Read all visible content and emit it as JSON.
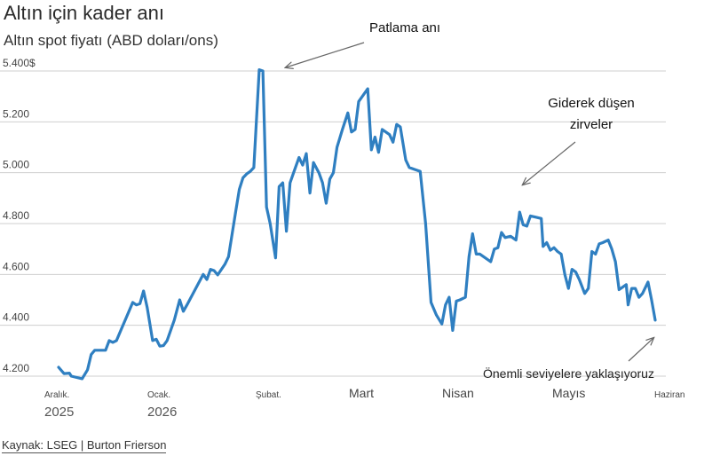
{
  "header": {
    "title": "Altın için kader anı",
    "subtitle": "Altın spot fiyatı (ABD doları/ons)"
  },
  "source": "Kaynak: LSEG | Burton Frierson",
  "chart_data": {
    "type": "line",
    "ylim": [
      4200,
      5400
    ],
    "y_ticks": [
      {
        "value": 5400,
        "label": "5.400$"
      },
      {
        "value": 5200,
        "label": "5.200"
      },
      {
        "value": 5000,
        "label": "5.000"
      },
      {
        "value": 4800,
        "label": "4.800"
      },
      {
        "value": 4600,
        "label": "4.600"
      },
      {
        "value": 4400,
        "label": "4.400"
      },
      {
        "value": 4200,
        "label": "4.200"
      }
    ],
    "x_ticks": [
      {
        "label": "Aralık.",
        "year": "2025",
        "size": "small"
      },
      {
        "label": "Ocak.",
        "year": "2026",
        "size": "small"
      },
      {
        "label": "Şubat.",
        "year": "",
        "size": "small"
      },
      {
        "label": "Mart",
        "year": "",
        "size": "large"
      },
      {
        "label": "Nisan",
        "year": "",
        "size": "large"
      },
      {
        "label": "Mayıs",
        "year": "",
        "size": "large"
      },
      {
        "label": "Haziran",
        "year": "",
        "size": "small"
      }
    ],
    "series": [
      {
        "color": "#2f7fc1",
        "points": [
          [
            0.0,
            4235
          ],
          [
            1.5,
            4210
          ],
          [
            3.0,
            4212
          ],
          [
            3.5,
            4200
          ],
          [
            6.5,
            4190
          ],
          [
            8.0,
            4225
          ],
          [
            9.0,
            4285
          ],
          [
            10.0,
            4302
          ],
          [
            13.0,
            4302
          ],
          [
            14.0,
            4340
          ],
          [
            15.0,
            4333
          ],
          [
            16.0,
            4340
          ],
          [
            17.5,
            4390
          ],
          [
            19.0,
            4440
          ],
          [
            20.5,
            4490
          ],
          [
            21.5,
            4480
          ],
          [
            22.5,
            4485
          ],
          [
            23.5,
            4535
          ],
          [
            24.5,
            4470
          ],
          [
            26.0,
            4340
          ],
          [
            27.0,
            4345
          ],
          [
            28.0,
            4318
          ],
          [
            29.0,
            4320
          ],
          [
            30.0,
            4340
          ],
          [
            32.0,
            4420
          ],
          [
            33.5,
            4500
          ],
          [
            34.5,
            4455
          ],
          [
            35.5,
            4480
          ],
          [
            37.0,
            4520
          ],
          [
            38.5,
            4560
          ],
          [
            40.0,
            4600
          ],
          [
            41.0,
            4580
          ],
          [
            42.0,
            4620
          ],
          [
            43.0,
            4615
          ],
          [
            44.0,
            4598
          ],
          [
            46.0,
            4640
          ],
          [
            47.0,
            4670
          ],
          [
            48.0,
            4760
          ],
          [
            49.0,
            4850
          ],
          [
            50.0,
            4935
          ],
          [
            51.0,
            4980
          ],
          [
            52.0,
            4995
          ],
          [
            53.0,
            5005
          ],
          [
            54.0,
            5020
          ],
          [
            55.5,
            5405
          ],
          [
            56.5,
            5400
          ],
          [
            57.5,
            4865
          ],
          [
            58.5,
            4800
          ],
          [
            60.0,
            4665
          ],
          [
            61.0,
            4945
          ],
          [
            62.0,
            4960
          ],
          [
            63.0,
            4770
          ],
          [
            64.0,
            4960
          ],
          [
            65.0,
            5000
          ],
          [
            66.5,
            5060
          ],
          [
            67.5,
            5030
          ],
          [
            68.5,
            5075
          ],
          [
            69.5,
            4920
          ],
          [
            70.5,
            5040
          ],
          [
            72.0,
            5000
          ],
          [
            73.0,
            4960
          ],
          [
            74.0,
            4880
          ],
          [
            75.0,
            4975
          ],
          [
            76.0,
            5000
          ],
          [
            77.0,
            5100
          ],
          [
            78.5,
            5170
          ],
          [
            80.0,
            5235
          ],
          [
            81.0,
            5160
          ],
          [
            82.0,
            5170
          ],
          [
            83.0,
            5280
          ],
          [
            84.0,
            5300
          ],
          [
            85.5,
            5330
          ],
          [
            86.5,
            5090
          ],
          [
            87.5,
            5140
          ],
          [
            88.5,
            5080
          ],
          [
            89.5,
            5170
          ],
          [
            90.5,
            5160
          ],
          [
            91.5,
            5150
          ],
          [
            92.5,
            5120
          ],
          [
            93.5,
            5190
          ],
          [
            94.5,
            5180
          ],
          [
            96.0,
            5050
          ],
          [
            97.0,
            5020
          ],
          [
            99.0,
            5010
          ],
          [
            100.0,
            5005
          ],
          [
            101.5,
            4800
          ],
          [
            103.0,
            4490
          ],
          [
            104.5,
            4440
          ],
          [
            106.0,
            4405
          ],
          [
            107.0,
            4480
          ],
          [
            108.0,
            4510
          ],
          [
            109.0,
            4380
          ],
          [
            110.0,
            4495
          ],
          [
            111.0,
            4500
          ],
          [
            112.5,
            4510
          ],
          [
            113.5,
            4670
          ],
          [
            114.5,
            4760
          ],
          [
            115.5,
            4680
          ],
          [
            116.5,
            4680
          ],
          [
            118.0,
            4665
          ],
          [
            119.5,
            4650
          ],
          [
            120.5,
            4700
          ],
          [
            121.5,
            4705
          ],
          [
            122.5,
            4765
          ],
          [
            123.5,
            4745
          ],
          [
            125.0,
            4750
          ],
          [
            126.5,
            4735
          ],
          [
            127.5,
            4845
          ],
          [
            128.5,
            4795
          ],
          [
            129.5,
            4790
          ],
          [
            130.5,
            4830
          ],
          [
            132.0,
            4825
          ],
          [
            133.5,
            4820
          ],
          [
            134.0,
            4710
          ],
          [
            135.0,
            4725
          ],
          [
            136.0,
            4695
          ],
          [
            137.0,
            4705
          ],
          [
            138.0,
            4690
          ],
          [
            139.0,
            4680
          ],
          [
            140.0,
            4600
          ],
          [
            141.0,
            4545
          ],
          [
            142.0,
            4620
          ],
          [
            143.0,
            4610
          ],
          [
            144.0,
            4580
          ],
          [
            145.5,
            4525
          ],
          [
            146.5,
            4545
          ],
          [
            147.5,
            4690
          ],
          [
            148.5,
            4680
          ],
          [
            149.5,
            4720
          ],
          [
            150.5,
            4725
          ],
          [
            152.0,
            4735
          ],
          [
            153.0,
            4700
          ],
          [
            154.0,
            4650
          ],
          [
            155.0,
            4540
          ],
          [
            156.0,
            4550
          ],
          [
            157.0,
            4560
          ],
          [
            157.5,
            4480
          ],
          [
            158.5,
            4545
          ],
          [
            159.5,
            4545
          ],
          [
            160.5,
            4510
          ],
          [
            161.5,
            4525
          ],
          [
            163.0,
            4570
          ],
          [
            164.0,
            4500
          ],
          [
            165.0,
            4420
          ]
        ]
      }
    ],
    "x_domain": [
      0,
      165
    ],
    "annotations": [
      {
        "text_lines": [
          "Patlama anı"
        ]
      },
      {
        "text_lines": [
          "Giderek düşen",
          "zirveler"
        ]
      },
      {
        "text_lines": [
          "Önemli seviyelere yaklaşıyoruz"
        ]
      }
    ]
  }
}
